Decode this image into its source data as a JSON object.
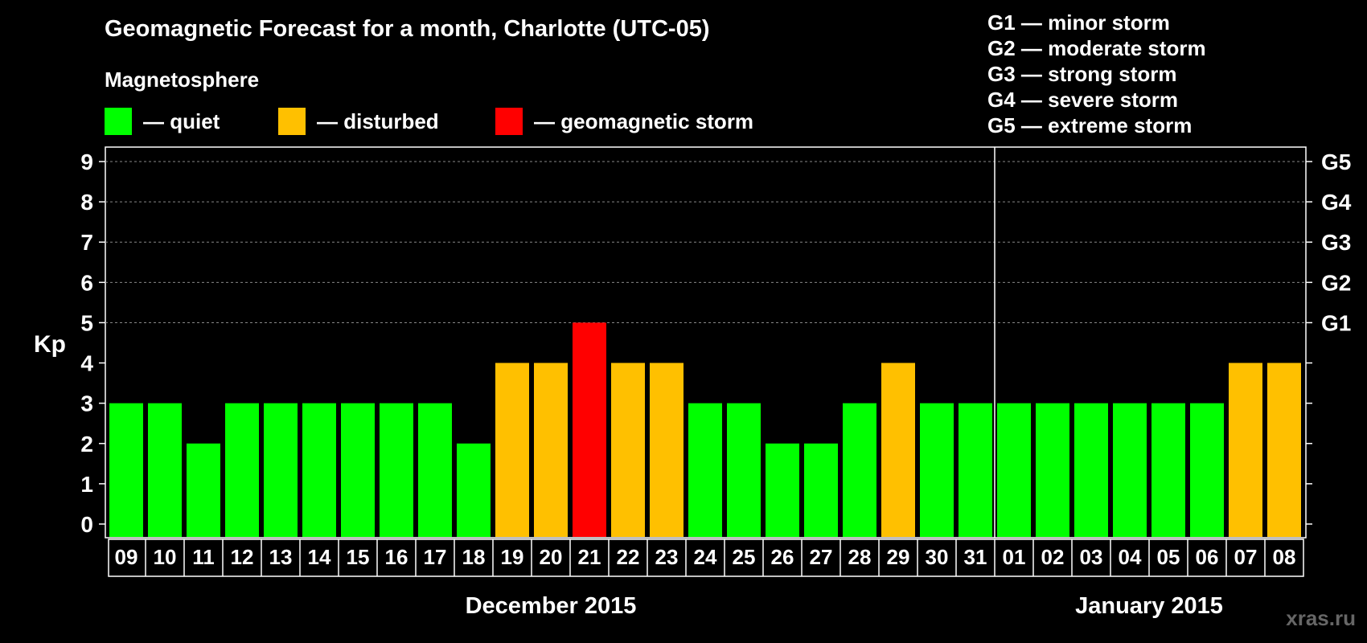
{
  "title": "Geomagnetic Forecast for a month, Charlotte (UTC-05)",
  "legend": {
    "heading": "Magnetosphere",
    "items": [
      {
        "key": "quiet",
        "label": "— quiet",
        "color": "#00ff00"
      },
      {
        "key": "disturbed",
        "label": "— disturbed",
        "color": "#ffc000"
      },
      {
        "key": "storm",
        "label": "— geomagnetic storm",
        "color": "#ff0000"
      }
    ]
  },
  "storm_scale": [
    "G1 — minor storm",
    "G2 — moderate storm",
    "G3 — strong storm",
    "G4 — severe storm",
    "G5 — extreme storm"
  ],
  "watermark": "xras.ru",
  "chart_data": {
    "type": "bar",
    "ylabel": "Kp",
    "ylim": [
      0,
      9
    ],
    "yticks": [
      0,
      1,
      2,
      3,
      4,
      5,
      6,
      7,
      8,
      9
    ],
    "right_axis_labels": [
      {
        "value": 5,
        "label": "G1"
      },
      {
        "value": 6,
        "label": "G2"
      },
      {
        "value": 7,
        "label": "G3"
      },
      {
        "value": 8,
        "label": "G4"
      },
      {
        "value": 9,
        "label": "G5"
      }
    ],
    "categories": [
      "09",
      "10",
      "11",
      "12",
      "13",
      "14",
      "15",
      "16",
      "17",
      "18",
      "19",
      "20",
      "21",
      "22",
      "23",
      "24",
      "25",
      "26",
      "27",
      "28",
      "29",
      "30",
      "31",
      "01",
      "02",
      "03",
      "04",
      "05",
      "06",
      "07",
      "08"
    ],
    "values": [
      3,
      3,
      2,
      3,
      3,
      3,
      3,
      3,
      3,
      2,
      4,
      4,
      5,
      4,
      4,
      3,
      3,
      2,
      2,
      3,
      4,
      3,
      3,
      3,
      3,
      3,
      3,
      3,
      3,
      4,
      4
    ],
    "months": [
      {
        "label": "December 2015",
        "start": 0,
        "end": 22
      },
      {
        "label": "January 2015",
        "start": 23,
        "end": 30
      }
    ],
    "colors": {
      "quiet": "#00ff00",
      "disturbed": "#ffc000",
      "storm": "#ff0000"
    },
    "grid": true
  }
}
